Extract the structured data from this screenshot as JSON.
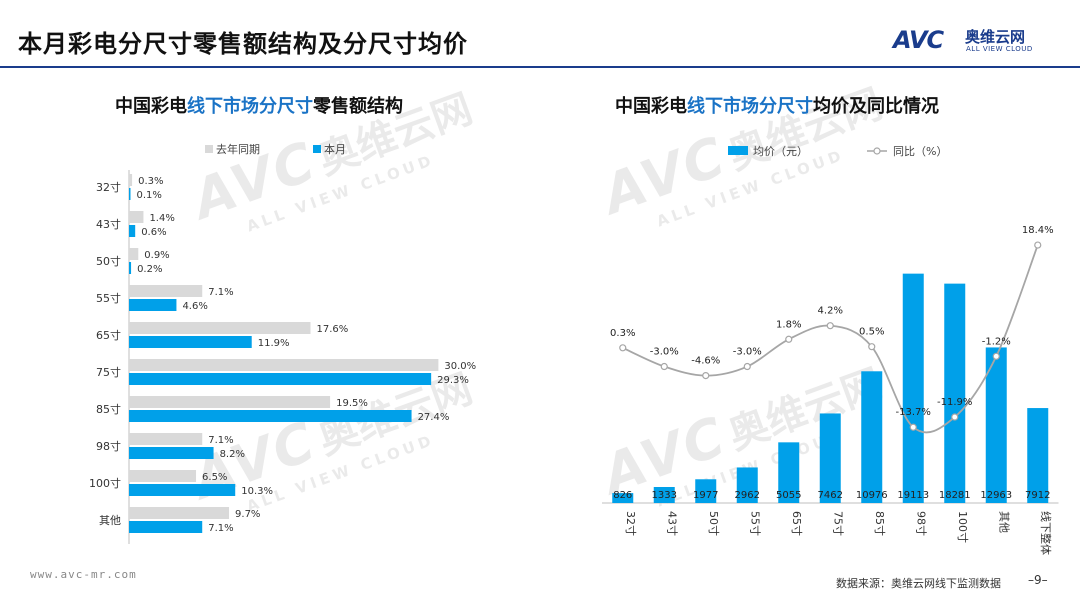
{
  "page": {
    "title": "本月彩电分尺寸零售额结构及分尺寸均价",
    "footer_url": "www.avc-mr.com",
    "footer_source": "数据来源：奥维云网线下监测数据",
    "page_number": "–9–"
  },
  "logo": {
    "mark": "AVC",
    "cn": "奥维云网",
    "en": "ALL VIEW CLOUD"
  },
  "watermark": {
    "mark": "AVC",
    "cn": "奥维云网",
    "en": "ALL VIEW CLOUD"
  },
  "colors": {
    "accent": "#1a3c8c",
    "blue_bar": "#00a0e9",
    "gray_bar": "#d9d9d9",
    "line": "#a6a6a6",
    "highlight": "#1a73c6"
  },
  "left_chart_title": {
    "pre": "中国彩电",
    "hl": "线下市场分尺寸",
    "post": "零售额结构"
  },
  "right_chart_title": {
    "pre": "中国彩电",
    "hl": "线下市场分尺寸",
    "post": "均价及同比情况"
  },
  "chart_data": [
    {
      "type": "bar",
      "orientation": "horizontal",
      "title": "中国彩电线下市场分尺寸零售额结构",
      "categories": [
        "32寸",
        "43寸",
        "50寸",
        "55寸",
        "65寸",
        "75寸",
        "85寸",
        "98寸",
        "100寸",
        "其他"
      ],
      "series": [
        {
          "name": "去年同期",
          "values": [
            0.3,
            1.4,
            0.9,
            7.1,
            17.6,
            30.0,
            19.5,
            7.1,
            6.5,
            9.7
          ],
          "labels": [
            "0.3%",
            "1.4%",
            "0.9%",
            "7.1%",
            "17.6%",
            "30.0%",
            "19.5%",
            "7.1%",
            "6.5%",
            "9.7%"
          ]
        },
        {
          "name": "本月",
          "values": [
            0.1,
            0.6,
            0.2,
            4.6,
            11.9,
            29.3,
            27.4,
            8.2,
            10.3,
            7.1
          ],
          "labels": [
            "0.1%",
            "0.6%",
            "0.2%",
            "4.6%",
            "11.9%",
            "29.3%",
            "27.4%",
            "8.2%",
            "10.3%",
            "7.1%"
          ]
        }
      ],
      "xlim": [
        0,
        32
      ],
      "legend": "top"
    },
    {
      "type": "bar+line",
      "title": "中国彩电线下市场分尺寸均价及同比情况",
      "categories": [
        "32寸",
        "43寸",
        "50寸",
        "55寸",
        "65寸",
        "75寸",
        "85寸",
        "98寸",
        "100寸",
        "其他",
        "线下整体"
      ],
      "bar_series": {
        "name": "均价（元）",
        "values": [
          826,
          1333,
          1977,
          2962,
          5055,
          7462,
          10976,
          19113,
          18281,
          12963,
          7912
        ],
        "labels": [
          "826",
          "1333",
          "1977",
          "2962",
          "5055",
          "7462",
          "10976",
          "19113",
          "18281",
          "12963",
          "7912"
        ]
      },
      "line_series": {
        "name": "同比（%）",
        "values": [
          0.3,
          -3.0,
          -4.6,
          -3.0,
          1.8,
          4.2,
          0.5,
          -13.7,
          -11.9,
          -1.2,
          18.4
        ],
        "labels": [
          "0.3%",
          "-3.0%",
          "-4.6%",
          "-3.0%",
          "1.8%",
          "4.2%",
          "0.5%",
          "-13.7%",
          "-11.9%",
          "-1.2%",
          "18.4%"
        ]
      },
      "bar_ylim": [
        0,
        20000
      ],
      "line_ylim": [
        -20,
        20
      ],
      "legend": "top"
    }
  ]
}
